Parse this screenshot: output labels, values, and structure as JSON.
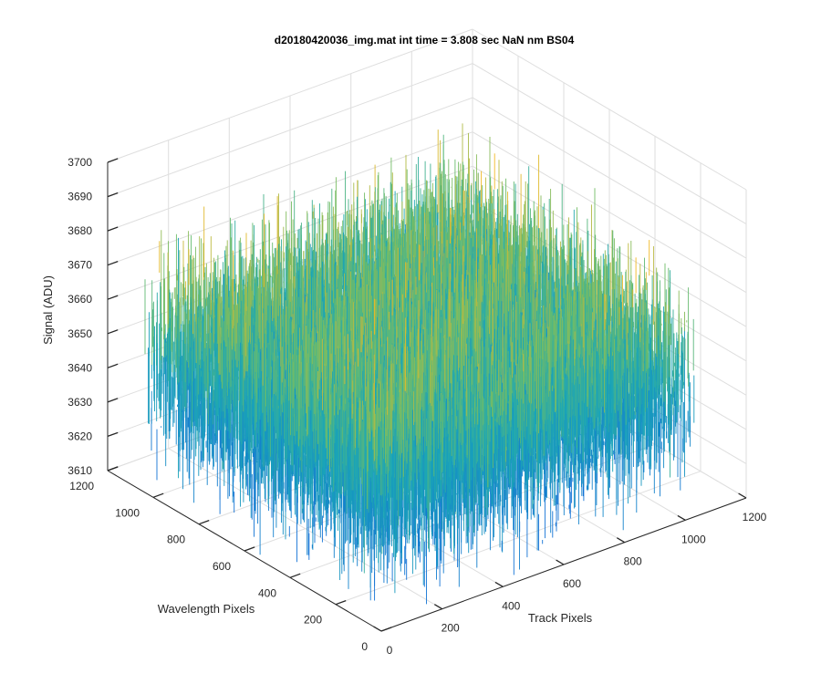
{
  "chart_data": {
    "type": "surface3d",
    "title": "d20180420036_img.mat int time = 3.808 sec  NaN nm BS04",
    "xlabel": "Track Pixels",
    "ylabel": "Wavelength Pixels",
    "zlabel": "Signal (ADU)",
    "x_range": [
      0,
      1200
    ],
    "y_range": [
      0,
      1200
    ],
    "z_range": [
      3610,
      3700
    ],
    "x_ticks": [
      "0",
      "200",
      "400",
      "600",
      "800",
      "1000",
      "1200"
    ],
    "y_ticks": [
      "0",
      "200",
      "400",
      "600",
      "800",
      "1000",
      "1200"
    ],
    "z_ticks": [
      "3610",
      "3620",
      "3630",
      "3640",
      "3650",
      "3660",
      "3670",
      "3680",
      "3690",
      "3700"
    ],
    "grid": true,
    "colormap": "parula",
    "surface": {
      "x_extent": [
        0,
        1024
      ],
      "y_extent": [
        0,
        1024
      ],
      "mean_signal": 3650,
      "typical_min": 3625,
      "typical_max": 3680,
      "outlier_min": 3612,
      "outlier_max": 3690
    },
    "colors": {
      "low": "#1372d6",
      "mid": "#1aa6b7",
      "mid2": "#6cbd6a",
      "high": "#f2b824"
    }
  }
}
